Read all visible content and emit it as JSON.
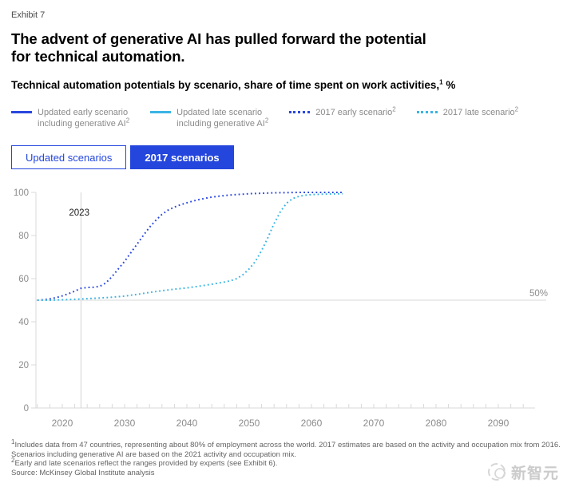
{
  "page": {
    "exhibit_label": "Exhibit 7",
    "title_line1": "The advent of generative AI has pulled forward the potential",
    "title_line2": "for technical automation.",
    "subtitle": "Technical automation potentials by scenario, share of time spent on work activities,",
    "subtitle_sup": "1",
    "subtitle_suffix": " %"
  },
  "legend": {
    "items": [
      {
        "name": "updated-early-scenario",
        "lines": [
          "Updated early scenario",
          "including generative AI"
        ],
        "sup": "2",
        "style": "solid",
        "color": "#2a46df"
      },
      {
        "name": "updated-late-scenario",
        "lines": [
          "Updated late scenario",
          "including generative AI"
        ],
        "sup": "2",
        "style": "solid",
        "color": "#3ab4e4"
      },
      {
        "name": "2017-early-scenario",
        "lines": [
          "2017 early scenario"
        ],
        "sup": "2",
        "style": "dotted",
        "color": "#2a46df"
      },
      {
        "name": "2017-late-scenario",
        "lines": [
          "2017 late scenario"
        ],
        "sup": "2",
        "style": "dotted",
        "color": "#3ab4e4"
      }
    ]
  },
  "buttons": [
    {
      "label": "Updated scenarios",
      "active": false
    },
    {
      "label": "2017 scenarios",
      "active": true
    }
  ],
  "chart_data": {
    "type": "line",
    "title": "Technical automation potentials by scenario, share of time spent on work activities, %",
    "xlabel": "",
    "ylabel": "",
    "xlim": [
      2015.7,
      2095.5
    ],
    "ylim": [
      0,
      100
    ],
    "x_ticks": [
      2020,
      2030,
      2040,
      2050,
      2060,
      2070,
      2080,
      2090
    ],
    "y_ticks": [
      0,
      20,
      40,
      60,
      80,
      100
    ],
    "minor_tick_step_years": 2,
    "grid": false,
    "legend_position": "top",
    "annotations": {
      "vline_year": 2023,
      "vline_label": "2023",
      "hline_value": 50,
      "hline_label": "50%"
    },
    "axis_color": "#d9d9d9",
    "tick_label_color": "#8c8c8c",
    "series": [
      {
        "name": "2017 early scenario",
        "color": "#2a46df",
        "dash": "dotted",
        "points": [
          [
            2016,
            50
          ],
          [
            2017,
            50.2
          ],
          [
            2018,
            50.6
          ],
          [
            2019,
            51.2
          ],
          [
            2020,
            52
          ],
          [
            2021,
            53
          ],
          [
            2022,
            54.2
          ],
          [
            2023,
            55.5
          ],
          [
            2024,
            55.9
          ],
          [
            2025,
            56
          ],
          [
            2026,
            56.4
          ],
          [
            2027,
            58
          ],
          [
            2028,
            61
          ],
          [
            2029,
            64.5
          ],
          [
            2030,
            68
          ],
          [
            2031,
            72
          ],
          [
            2032,
            76
          ],
          [
            2033,
            80
          ],
          [
            2034,
            83.8
          ],
          [
            2035,
            87
          ],
          [
            2036,
            89.8
          ],
          [
            2037,
            91.8
          ],
          [
            2038,
            93.2
          ],
          [
            2039,
            94.3
          ],
          [
            2040,
            95.2
          ],
          [
            2041,
            96
          ],
          [
            2042,
            96.7
          ],
          [
            2043,
            97.3
          ],
          [
            2044,
            97.8
          ],
          [
            2045,
            98.2
          ],
          [
            2046,
            98.5
          ],
          [
            2047,
            98.8
          ],
          [
            2048,
            99
          ],
          [
            2049,
            99.2
          ],
          [
            2050,
            99.4
          ],
          [
            2052,
            99.6
          ],
          [
            2054,
            99.8
          ],
          [
            2056,
            99.9
          ],
          [
            2058,
            100
          ],
          [
            2060,
            100
          ],
          [
            2062,
            100
          ],
          [
            2065,
            100
          ]
        ]
      },
      {
        "name": "2017 late scenario",
        "color": "#3ab4e4",
        "dash": "dotted",
        "points": [
          [
            2016,
            50
          ],
          [
            2018,
            50
          ],
          [
            2020,
            50.2
          ],
          [
            2022,
            50.4
          ],
          [
            2024,
            50.7
          ],
          [
            2026,
            51
          ],
          [
            2028,
            51.4
          ],
          [
            2030,
            51.9
          ],
          [
            2032,
            52.7
          ],
          [
            2034,
            53.6
          ],
          [
            2036,
            54.4
          ],
          [
            2038,
            55.1
          ],
          [
            2040,
            55.7
          ],
          [
            2042,
            56.5
          ],
          [
            2044,
            57.4
          ],
          [
            2046,
            58.4
          ],
          [
            2047,
            59
          ],
          [
            2048,
            60
          ],
          [
            2049,
            61.8
          ],
          [
            2050,
            64.5
          ],
          [
            2051,
            68
          ],
          [
            2052,
            73
          ],
          [
            2053,
            79
          ],
          [
            2054,
            85.5
          ],
          [
            2055,
            91
          ],
          [
            2056,
            95
          ],
          [
            2057,
            97.2
          ],
          [
            2058,
            98.2
          ],
          [
            2059,
            98.7
          ],
          [
            2060,
            99
          ],
          [
            2062,
            99.2
          ],
          [
            2065,
            99.4
          ]
        ]
      }
    ]
  },
  "footnotes": {
    "note1_sup": "1",
    "note1": "Includes data from 47 countries, representing about 80% of employment across the world. 2017 estimates are based on the activity and occupation mix from 2016. Scenarios including generative AI are based on the 2021 activity and occupation mix.",
    "note2_sup": "2",
    "note2": "Early and late scenarios reflect the ranges provided by experts (see Exhibit 6).",
    "source": "Source: McKinsey Global Institute analysis"
  },
  "watermark": {
    "text": "新智元"
  }
}
